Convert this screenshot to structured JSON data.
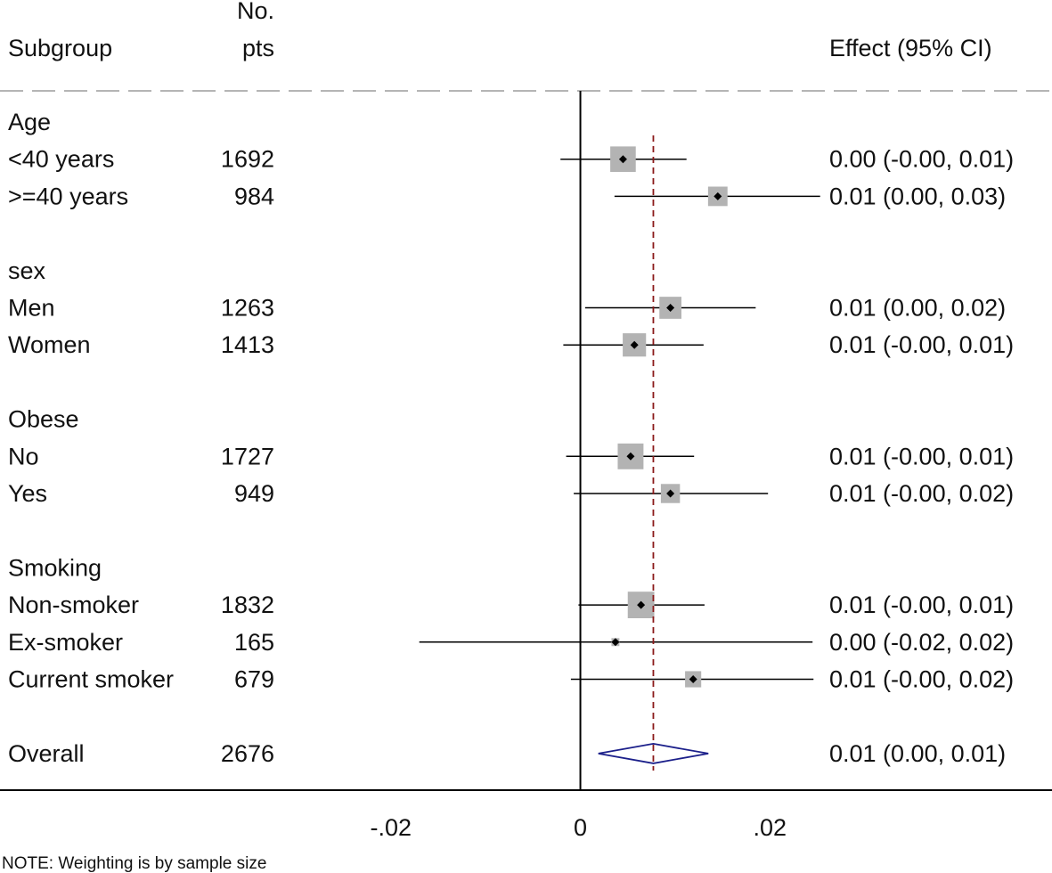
{
  "chart_data": {
    "type": "forest",
    "columns": {
      "subgroup": "Subgroup",
      "npts_line1": "No.",
      "npts_line2": "pts",
      "effect": "Effect (95% CI)"
    },
    "groups": [
      {
        "heading": "Age",
        "rows": [
          {
            "label": "<40 years",
            "n": "1692",
            "n_value": 1692,
            "est": 0.0045,
            "lo": -0.0021,
            "hi": 0.0112,
            "text": "0.00 (-0.00, 0.01)"
          },
          {
            "label": ">=40 years",
            "n": "984",
            "n_value": 984,
            "est": 0.0145,
            "lo": 0.0036,
            "hi": 0.0253,
            "text": "0.01 (0.00, 0.03)"
          }
        ]
      },
      {
        "heading": "sex",
        "rows": [
          {
            "label": "Men",
            "n": "1263",
            "n_value": 1263,
            "est": 0.0095,
            "lo": 0.0005,
            "hi": 0.0185,
            "text": "0.01 (0.00, 0.02)"
          },
          {
            "label": "Women",
            "n": "1413",
            "n_value": 1413,
            "est": 0.0057,
            "lo": -0.0018,
            "hi": 0.013,
            "text": "0.01 (-0.00, 0.01)"
          }
        ]
      },
      {
        "heading": "Obese",
        "rows": [
          {
            "label": "No",
            "n": "1727",
            "n_value": 1727,
            "est": 0.0053,
            "lo": -0.0015,
            "hi": 0.012,
            "text": "0.01 (-0.00, 0.01)"
          },
          {
            "label": "Yes",
            "n": "949",
            "n_value": 949,
            "est": 0.0095,
            "lo": -0.0007,
            "hi": 0.0198,
            "text": "0.01 (-0.00, 0.02)"
          }
        ]
      },
      {
        "heading": "Smoking",
        "rows": [
          {
            "label": "Non-smoker",
            "n": "1832",
            "n_value": 1832,
            "est": 0.0064,
            "lo": -0.0002,
            "hi": 0.0131,
            "text": "0.01 (-0.00, 0.01)"
          },
          {
            "label": "Ex-smoker",
            "n": "165",
            "n_value": 165,
            "est": 0.0037,
            "lo": -0.017,
            "hi": 0.0245,
            "text": "0.00 (-0.02, 0.02)"
          },
          {
            "label": "Current smoker",
            "n": "679",
            "n_value": 679,
            "est": 0.0119,
            "lo": -0.001,
            "hi": 0.0246,
            "text": "0.01 (-0.00, 0.02)"
          }
        ]
      }
    ],
    "overall": {
      "label": "Overall",
      "n": "2676",
      "n_value": 2676,
      "est": 0.0077,
      "lo": 0.0019,
      "hi": 0.0135,
      "text": "0.01 (0.00, 0.01)"
    },
    "null_line": 0,
    "xlim": [
      -0.0259,
      0.0242
    ],
    "xticks": [
      {
        "value": -0.02,
        "label": "-.02"
      },
      {
        "value": 0,
        "label": "0"
      },
      {
        "value": 0.02,
        "label": ".02"
      }
    ],
    "note": "NOTE: Weighting is by sample size",
    "colors": {
      "box": "#b3b3b3",
      "ci_line": "#000000",
      "reference_line": "#8b1a1a",
      "diamond": "#1b1f8a",
      "header_rule": "#b5b5b5"
    }
  }
}
